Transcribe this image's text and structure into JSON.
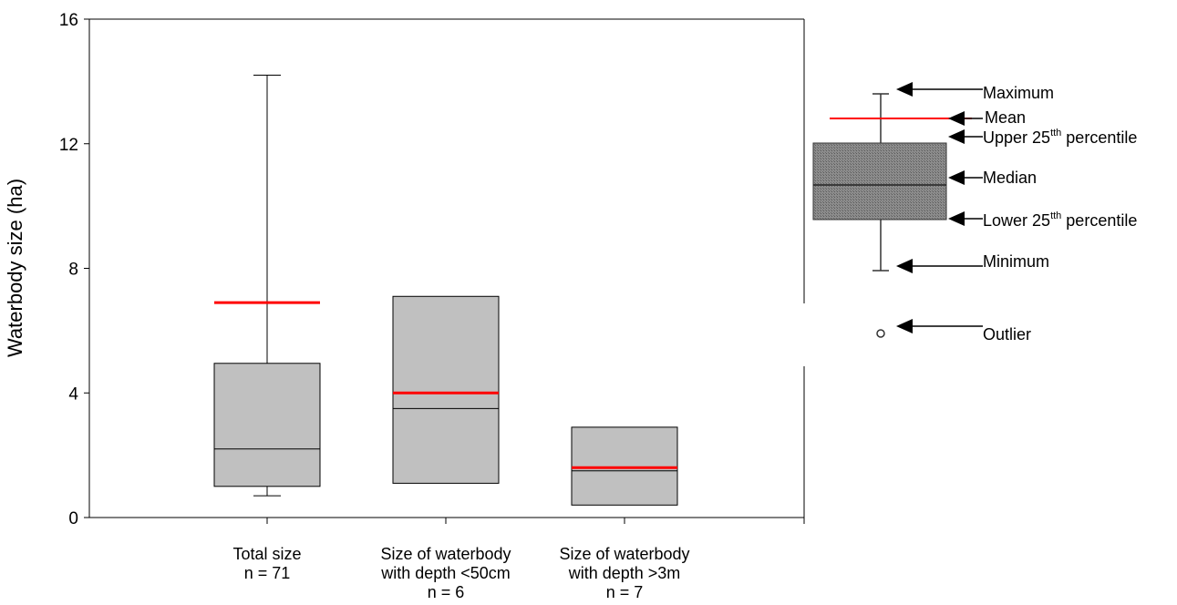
{
  "chart_data": {
    "type": "box",
    "ylabel": "Waterbody size (ha)",
    "xlabel": "",
    "ylim": [
      0,
      16
    ],
    "yticks": [
      "0",
      "4",
      "8",
      "12",
      "16"
    ],
    "grid": false,
    "colors": {
      "box_fill": "#c0c0c0",
      "box_stroke": "#000000",
      "mean_line": "#ff0000",
      "legend_box_fill": "#7a7a7a"
    },
    "series": [
      {
        "label_lines": [
          "Total size",
          "n = 71"
        ],
        "min": 0.7,
        "q1": 1.0,
        "median": 2.2,
        "q3": 4.95,
        "max": 14.2,
        "mean": 6.9
      },
      {
        "label_lines": [
          "Size of waterbody",
          "with depth <50cm",
          "n = 6"
        ],
        "min": 1.1,
        "q1": 1.1,
        "median": 3.5,
        "q3": 7.1,
        "max": 7.1,
        "mean": 4.0
      },
      {
        "label_lines": [
          "Size of waterbody",
          "with depth >3m",
          "n = 7"
        ],
        "min": 0.4,
        "q1": 0.4,
        "median": 1.5,
        "q3": 2.9,
        "max": 2.9,
        "mean": 1.6
      }
    ],
    "legend": {
      "placement": "right",
      "items": [
        {
          "key": "maximum",
          "parts": [
            {
              "t": "Maximum"
            }
          ]
        },
        {
          "key": "mean",
          "parts": [
            {
              "t": "Mean"
            }
          ]
        },
        {
          "key": "upper",
          "parts": [
            {
              "t": "Upper 25"
            },
            {
              "t": "tth",
              "sup": true
            },
            {
              "t": " percentile"
            }
          ]
        },
        {
          "key": "median",
          "parts": [
            {
              "t": "Median"
            }
          ]
        },
        {
          "key": "lower",
          "parts": [
            {
              "t": "Lower 25"
            },
            {
              "t": "tth",
              "sup": true
            },
            {
              "t": " percentile"
            }
          ]
        },
        {
          "key": "minimum",
          "parts": [
            {
              "t": "Minimum"
            }
          ]
        },
        {
          "key": "outlier",
          "parts": [
            {
              "t": "Outlier"
            }
          ]
        }
      ]
    }
  }
}
